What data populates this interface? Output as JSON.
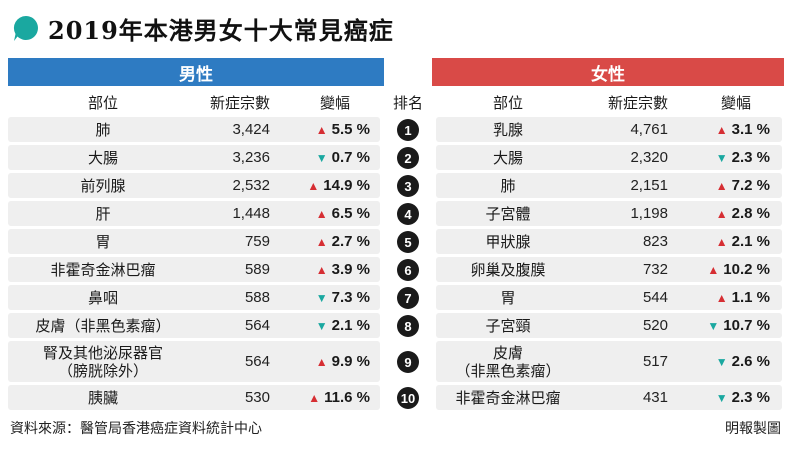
{
  "title": "2019年本港男女十大常見癌症",
  "colors": {
    "male": "#2e7bc2",
    "female": "#d94a47",
    "up": "#d62e33",
    "down": "#1aa8a0"
  },
  "headers": {
    "male": "男性",
    "female": "女性",
    "site": "部位",
    "cases": "新症宗數",
    "change": "變幅",
    "rank": "排名"
  },
  "rows": [
    {
      "rank": "1",
      "male_site": [
        "肺"
      ],
      "male_cases": "3,424",
      "male_dir": "up",
      "male_change": "5.5 %",
      "female_site": [
        "乳腺"
      ],
      "female_cases": "4,761",
      "female_dir": "up",
      "female_change": "3.1 %"
    },
    {
      "rank": "2",
      "male_site": [
        "大腸"
      ],
      "male_cases": "3,236",
      "male_dir": "down",
      "male_change": "0.7 %",
      "female_site": [
        "大腸"
      ],
      "female_cases": "2,320",
      "female_dir": "down",
      "female_change": "2.3 %"
    },
    {
      "rank": "3",
      "male_site": [
        "前列腺"
      ],
      "male_cases": "2,532",
      "male_dir": "up",
      "male_change": "14.9 %",
      "female_site": [
        "肺"
      ],
      "female_cases": "2,151",
      "female_dir": "up",
      "female_change": "7.2 %"
    },
    {
      "rank": "4",
      "male_site": [
        "肝"
      ],
      "male_cases": "1,448",
      "male_dir": "up",
      "male_change": "6.5 %",
      "female_site": [
        "子宮體"
      ],
      "female_cases": "1,198",
      "female_dir": "up",
      "female_change": "2.8 %"
    },
    {
      "rank": "5",
      "male_site": [
        "胃"
      ],
      "male_cases": "759",
      "male_dir": "up",
      "male_change": "2.7 %",
      "female_site": [
        "甲狀腺"
      ],
      "female_cases": "823",
      "female_dir": "up",
      "female_change": "2.1 %"
    },
    {
      "rank": "6",
      "male_site": [
        "非霍奇金淋巴瘤"
      ],
      "male_cases": "589",
      "male_dir": "up",
      "male_change": "3.9 %",
      "female_site": [
        "卵巢及腹膜"
      ],
      "female_cases": "732",
      "female_dir": "up",
      "female_change": "10.2 %"
    },
    {
      "rank": "7",
      "male_site": [
        "鼻咽"
      ],
      "male_cases": "588",
      "male_dir": "down",
      "male_change": "7.3 %",
      "female_site": [
        "胃"
      ],
      "female_cases": "544",
      "female_dir": "up",
      "female_change": "1.1 %"
    },
    {
      "rank": "8",
      "male_site": [
        "皮膚（非黑色素瘤）"
      ],
      "male_cases": "564",
      "male_dir": "down",
      "male_change": "2.1 %",
      "female_site": [
        "子宮頸"
      ],
      "female_cases": "520",
      "female_dir": "down",
      "female_change": "10.7 %"
    },
    {
      "rank": "9",
      "male_site": [
        "腎及其他泌尿器官",
        "（膀胱除外）"
      ],
      "male_cases": "564",
      "male_dir": "up",
      "male_change": "9.9 %",
      "female_site": [
        "皮膚",
        "（非黑色素瘤）"
      ],
      "female_cases": "517",
      "female_dir": "down",
      "female_change": "2.6 %"
    },
    {
      "rank": "10",
      "male_site": [
        "胰臟"
      ],
      "male_cases": "530",
      "male_dir": "up",
      "male_change": "11.6 %",
      "female_site": [
        "非霍奇金淋巴瘤"
      ],
      "female_cases": "431",
      "female_dir": "down",
      "female_change": "2.3 %"
    }
  ],
  "footer": {
    "source": "資料來源：醫管局香港癌症資料統計中心",
    "credit": "明報製圖"
  }
}
